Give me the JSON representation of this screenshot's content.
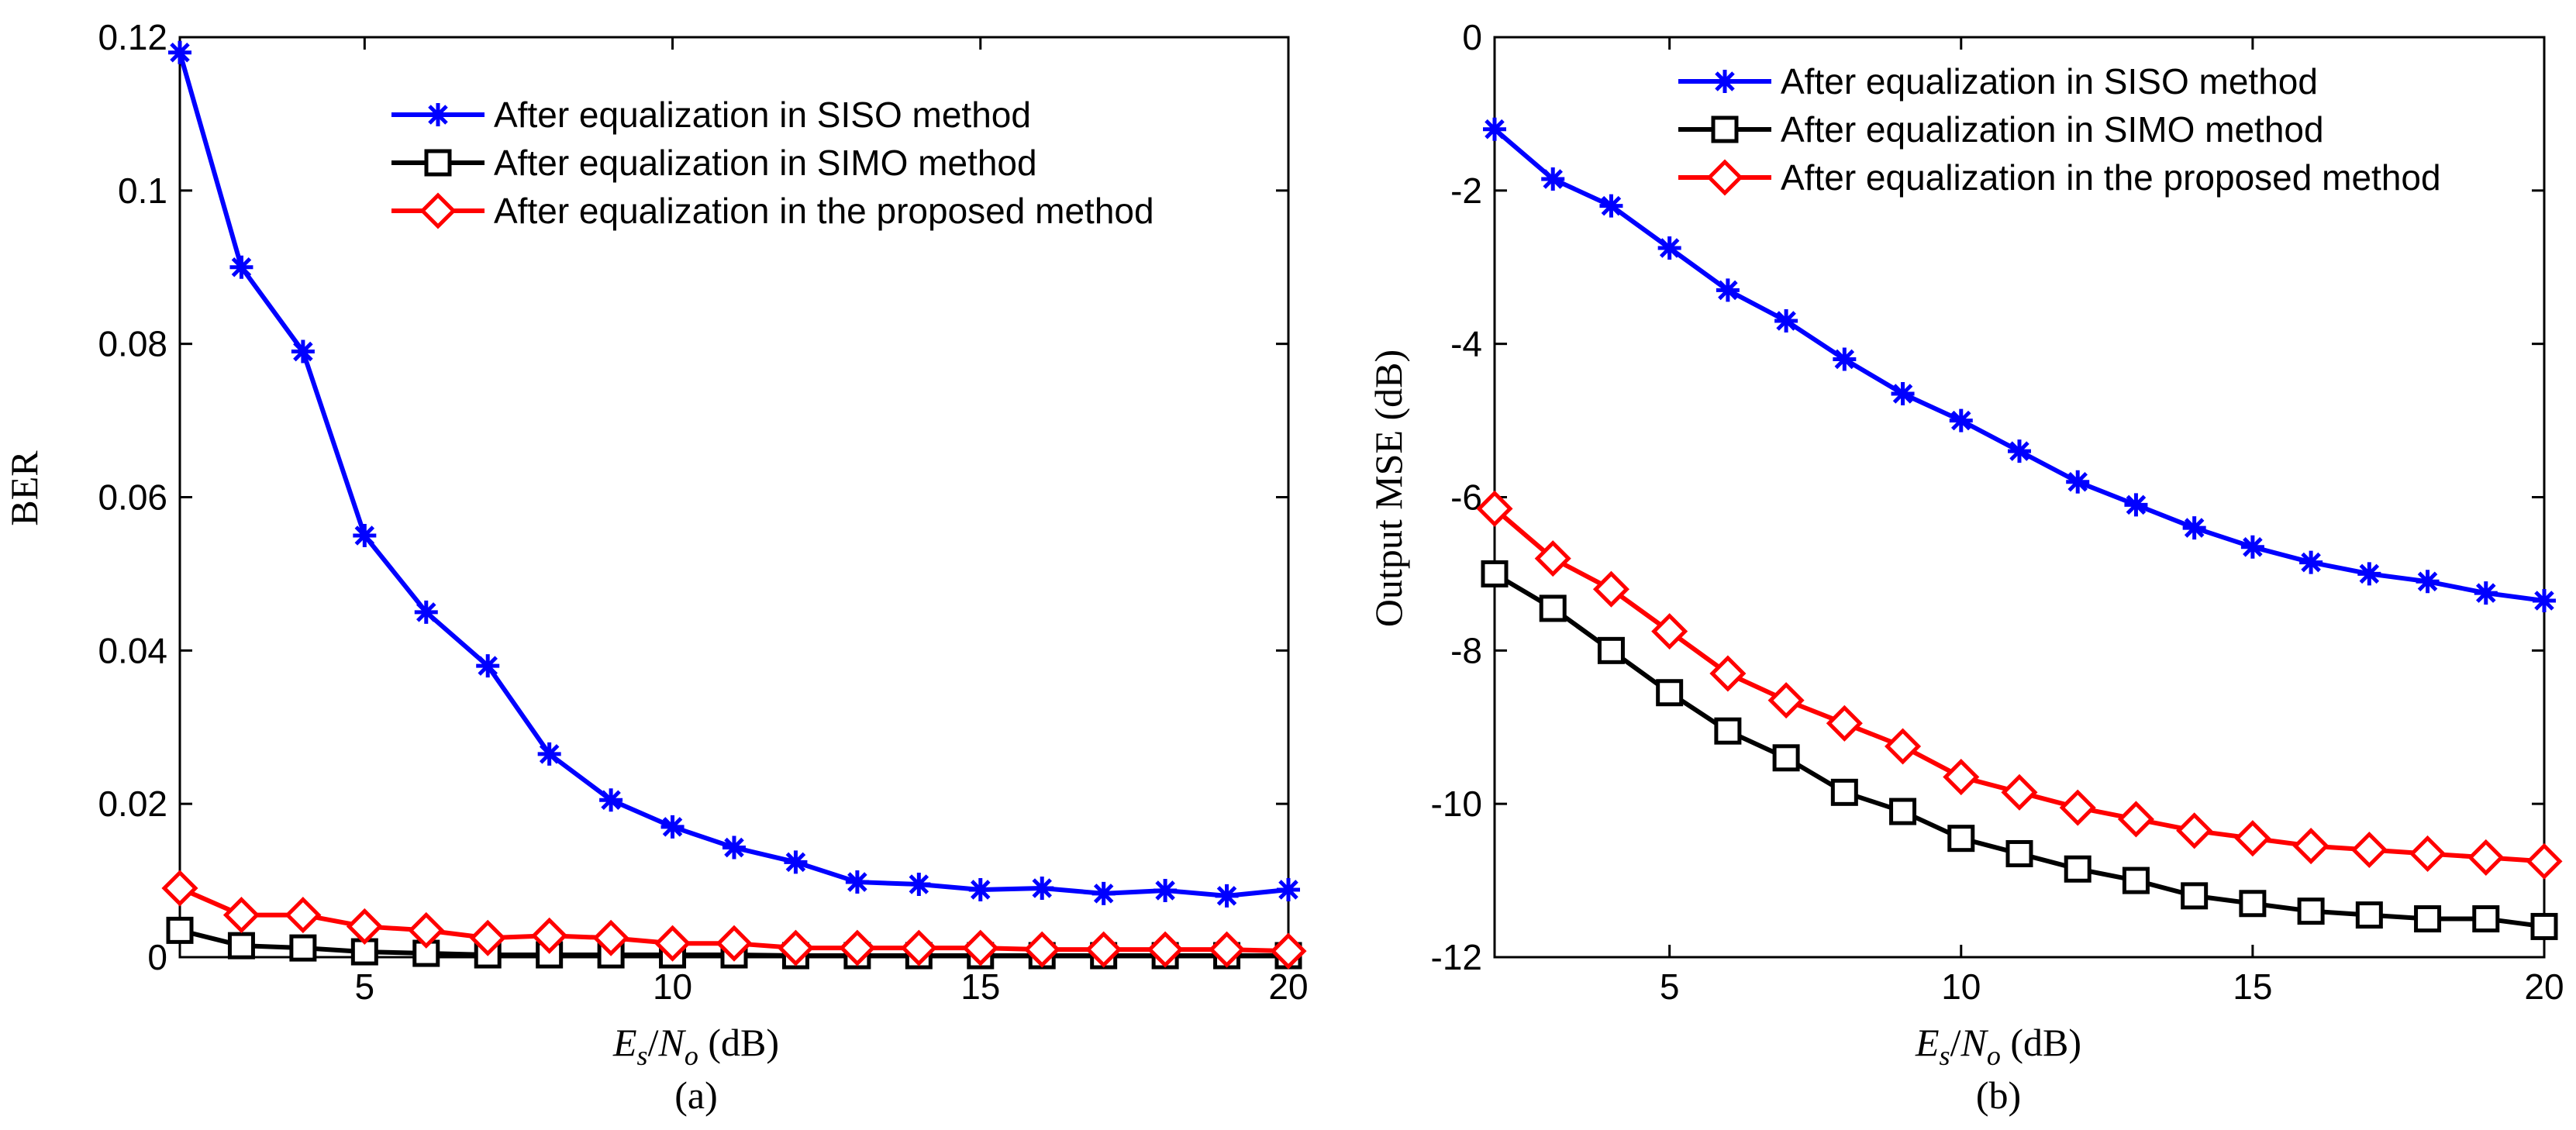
{
  "figure": {
    "panel_a_caption": "(a)",
    "panel_b_caption": "(b)"
  },
  "colors": {
    "siso": "#0000ff",
    "simo": "#000000",
    "proposed": "#ff0000"
  },
  "chart_data": [
    {
      "type": "line",
      "id": "a",
      "caption": "(a)",
      "xlabel": {
        "es": "E",
        "es_sub": "s",
        "slash": "/",
        "no": "N",
        "no_sub": "o",
        "unit": " (dB)"
      },
      "ylabel": "BER",
      "xlim": [
        2,
        20
      ],
      "ylim": [
        0,
        0.12
      ],
      "xticks": [
        5,
        10,
        15,
        20
      ],
      "yticks": [
        0,
        0.02,
        0.04,
        0.06,
        0.08,
        0.1,
        0.12
      ],
      "x_tick_labels": [
        "5",
        "10",
        "15",
        "20"
      ],
      "y_tick_labels": [
        "0",
        "0.02",
        "0.04",
        "0.06",
        "0.08",
        "0.1",
        "0.12"
      ],
      "legend_position": "top-right",
      "x": [
        2,
        3,
        4,
        5,
        6,
        7,
        8,
        9,
        10,
        11,
        12,
        13,
        14,
        15,
        16,
        17,
        18,
        19,
        20
      ],
      "series": [
        {
          "name": "After equalization in SISO method",
          "color_key": "siso",
          "marker": "star",
          "values": [
            0.118,
            0.09,
            0.079,
            0.055,
            0.045,
            0.038,
            0.0265,
            0.0205,
            0.017,
            0.0143,
            0.0124,
            0.0098,
            0.0095,
            0.0088,
            0.009,
            0.0083,
            0.0087,
            0.008,
            0.0088
          ]
        },
        {
          "name": "After equalization in SIMO method",
          "color_key": "simo",
          "marker": "square",
          "values": [
            0.0035,
            0.0015,
            0.0012,
            0.0007,
            0.0005,
            0.0003,
            0.0003,
            0.0003,
            0.0003,
            0.0003,
            0.0002,
            0.0002,
            0.0002,
            0.0002,
            0.0002,
            0.0002,
            0.0002,
            0.0002,
            0.0002
          ]
        },
        {
          "name": "After equalization in the proposed method",
          "color_key": "proposed",
          "marker": "diamond",
          "values": [
            0.009,
            0.0055,
            0.0055,
            0.004,
            0.0035,
            0.0025,
            0.0028,
            0.0025,
            0.0018,
            0.0018,
            0.0012,
            0.0012,
            0.0012,
            0.0012,
            0.001,
            0.001,
            0.001,
            0.001,
            0.0008
          ]
        }
      ]
    },
    {
      "type": "line",
      "id": "b",
      "caption": "(b)",
      "xlabel": {
        "es": "E",
        "es_sub": "s",
        "slash": "/",
        "no": "N",
        "no_sub": "o",
        "unit": " (dB)"
      },
      "ylabel": "Output MSE (dB)",
      "xlim": [
        2,
        20
      ],
      "ylim": [
        -12,
        0
      ],
      "xticks": [
        5,
        10,
        15,
        20
      ],
      "yticks": [
        -12,
        -10,
        -8,
        -6,
        -4,
        -2,
        0
      ],
      "x_tick_labels": [
        "5",
        "10",
        "15",
        "20"
      ],
      "y_tick_labels": [
        "-12",
        "-10",
        "-8",
        "-6",
        "-4",
        "-2",
        "0"
      ],
      "legend_position": "top-right",
      "x": [
        2,
        3,
        4,
        5,
        6,
        7,
        8,
        9,
        10,
        11,
        12,
        13,
        14,
        15,
        16,
        17,
        18,
        19,
        20
      ],
      "series": [
        {
          "name": "After equalization in SISO method",
          "color_key": "siso",
          "marker": "star",
          "values": [
            -1.2,
            -1.85,
            -2.2,
            -2.75,
            -3.3,
            -3.7,
            -4.2,
            -4.65,
            -5.0,
            -5.4,
            -5.8,
            -6.1,
            -6.4,
            -6.65,
            -6.85,
            -7.0,
            -7.1,
            -7.25,
            -7.35
          ]
        },
        {
          "name": "After equalization in SIMO method",
          "color_key": "simo",
          "marker": "square",
          "values": [
            -7.0,
            -7.45,
            -8.0,
            -8.55,
            -9.05,
            -9.4,
            -9.85,
            -10.1,
            -10.45,
            -10.65,
            -10.85,
            -11.0,
            -11.2,
            -11.3,
            -11.4,
            -11.45,
            -11.5,
            -11.5,
            -11.6
          ]
        },
        {
          "name": "After equalization in the proposed method",
          "color_key": "proposed",
          "marker": "diamond",
          "values": [
            -6.15,
            -6.8,
            -7.2,
            -7.75,
            -8.3,
            -8.65,
            -8.95,
            -9.25,
            -9.65,
            -9.85,
            -10.05,
            -10.2,
            -10.35,
            -10.45,
            -10.55,
            -10.6,
            -10.65,
            -10.7,
            -10.75
          ]
        }
      ]
    }
  ]
}
